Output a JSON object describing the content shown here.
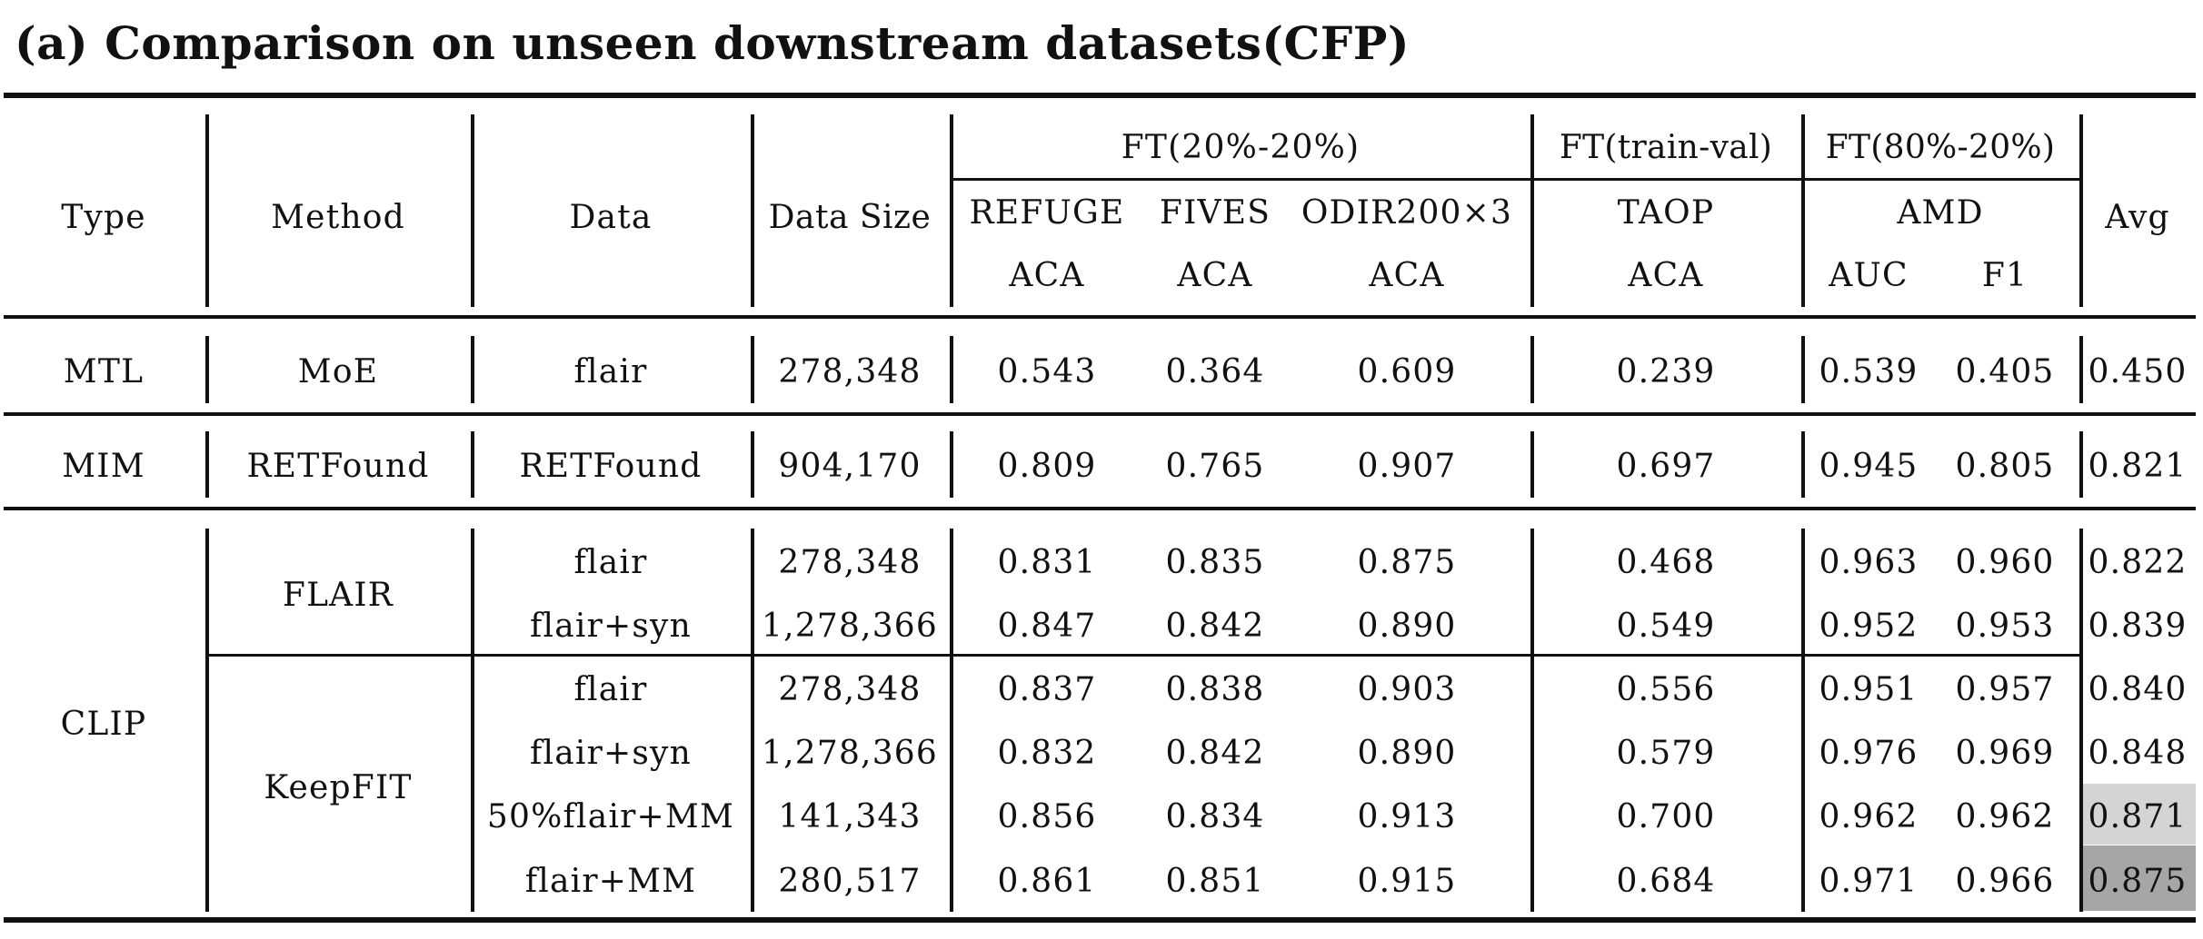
{
  "caption": "(a) Comparison on unseen downstream datasets(CFP)",
  "headers": {
    "type": "Type",
    "method": "Method",
    "data": "Data",
    "data_size": "Data Size",
    "avg": "Avg",
    "groups": [
      "FT(20%-20%)",
      "FT(train-val)",
      "FT(80%-20%)"
    ],
    "datasets": [
      "REFUGE",
      "FIVES",
      "ODIR200×3",
      "TAOP",
      "AMD"
    ],
    "metrics": [
      "ACA",
      "ACA",
      "ACA",
      "ACA",
      "AUC",
      "F1"
    ]
  },
  "types": [
    "MTL",
    "MIM",
    "CLIP"
  ],
  "methods": [
    "MoE",
    "RETFound",
    "FLAIR",
    "KeepFIT"
  ],
  "rows": [
    {
      "data": "flair",
      "size": "278,348",
      "vals": [
        "0.543",
        "0.364",
        "0.609",
        "0.239",
        "0.539",
        "0.405"
      ],
      "avg": "0.450"
    },
    {
      "data": "RETFound",
      "size": "904,170",
      "vals": [
        "0.809",
        "0.765",
        "0.907",
        "0.697",
        "0.945",
        "0.805"
      ],
      "avg": "0.821"
    },
    {
      "data": "flair",
      "size": "278,348",
      "vals": [
        "0.831",
        "0.835",
        "0.875",
        "0.468",
        "0.963",
        "0.960"
      ],
      "avg": "0.822"
    },
    {
      "data": "flair+syn",
      "size": "1,278,366",
      "vals": [
        "0.847",
        "0.842",
        "0.890",
        "0.549",
        "0.952",
        "0.953"
      ],
      "avg": "0.839"
    },
    {
      "data": "flair",
      "size": "278,348",
      "vals": [
        "0.837",
        "0.838",
        "0.903",
        "0.556",
        "0.951",
        "0.957"
      ],
      "avg": "0.840"
    },
    {
      "data": "flair+syn",
      "size": "1,278,366",
      "vals": [
        "0.832",
        "0.842",
        "0.890",
        "0.579",
        "0.976",
        "0.969"
      ],
      "avg": "0.848"
    },
    {
      "data": "50%flair+MM",
      "size": "141,343",
      "vals": [
        "0.856",
        "0.834",
        "0.913",
        "0.700",
        "0.962",
        "0.962"
      ],
      "avg": "0.871"
    },
    {
      "data": "flair+MM",
      "size": "280,517",
      "vals": [
        "0.861",
        "0.851",
        "0.915",
        "0.684",
        "0.971",
        "0.966"
      ],
      "avg": "0.875"
    }
  ],
  "highlight_colors": {
    "second_best": "#d4d4d4",
    "best": "#a6a6a6"
  }
}
